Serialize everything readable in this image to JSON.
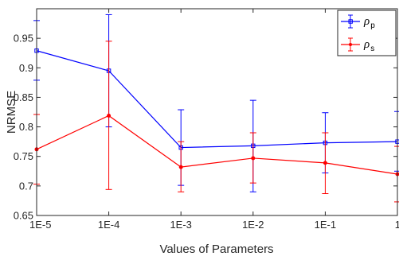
{
  "chart_data": {
    "type": "line",
    "title": "",
    "xlabel": "Values of Parameters",
    "ylabel": "NRMSE",
    "categories": [
      "1E-5",
      "1E-4",
      "1E-3",
      "1E-2",
      "1E-1",
      "1"
    ],
    "ylim": [
      0.65,
      1.0
    ],
    "yticks": [
      0.65,
      0.7,
      0.75,
      0.8,
      0.85,
      0.9,
      0.95
    ],
    "ytick_labels": [
      "0.65",
      "0.7",
      "0.75",
      "0.8",
      "0.85",
      "0.9",
      "0.95"
    ],
    "grid": false,
    "legend_position": "top-right",
    "series": [
      {
        "name": "ρp",
        "legend_main": "ρ",
        "legend_sub": "p",
        "color": "#0000ff",
        "marker": "square",
        "values": [
          0.929,
          0.895,
          0.765,
          0.768,
          0.773,
          0.775
        ],
        "err_low": [
          0.879,
          0.8,
          0.701,
          0.69,
          0.722,
          0.725
        ],
        "err_high": [
          0.98,
          0.99,
          0.829,
          0.845,
          0.824,
          0.826
        ]
      },
      {
        "name": "ρs",
        "legend_main": "ρ",
        "legend_sub": "s",
        "color": "#ff0000",
        "marker": "dot",
        "values": [
          0.762,
          0.819,
          0.732,
          0.747,
          0.739,
          0.72
        ],
        "err_low": [
          0.703,
          0.694,
          0.69,
          0.705,
          0.687,
          0.673
        ],
        "err_high": [
          0.821,
          0.945,
          0.775,
          0.79,
          0.79,
          0.767
        ]
      }
    ]
  }
}
